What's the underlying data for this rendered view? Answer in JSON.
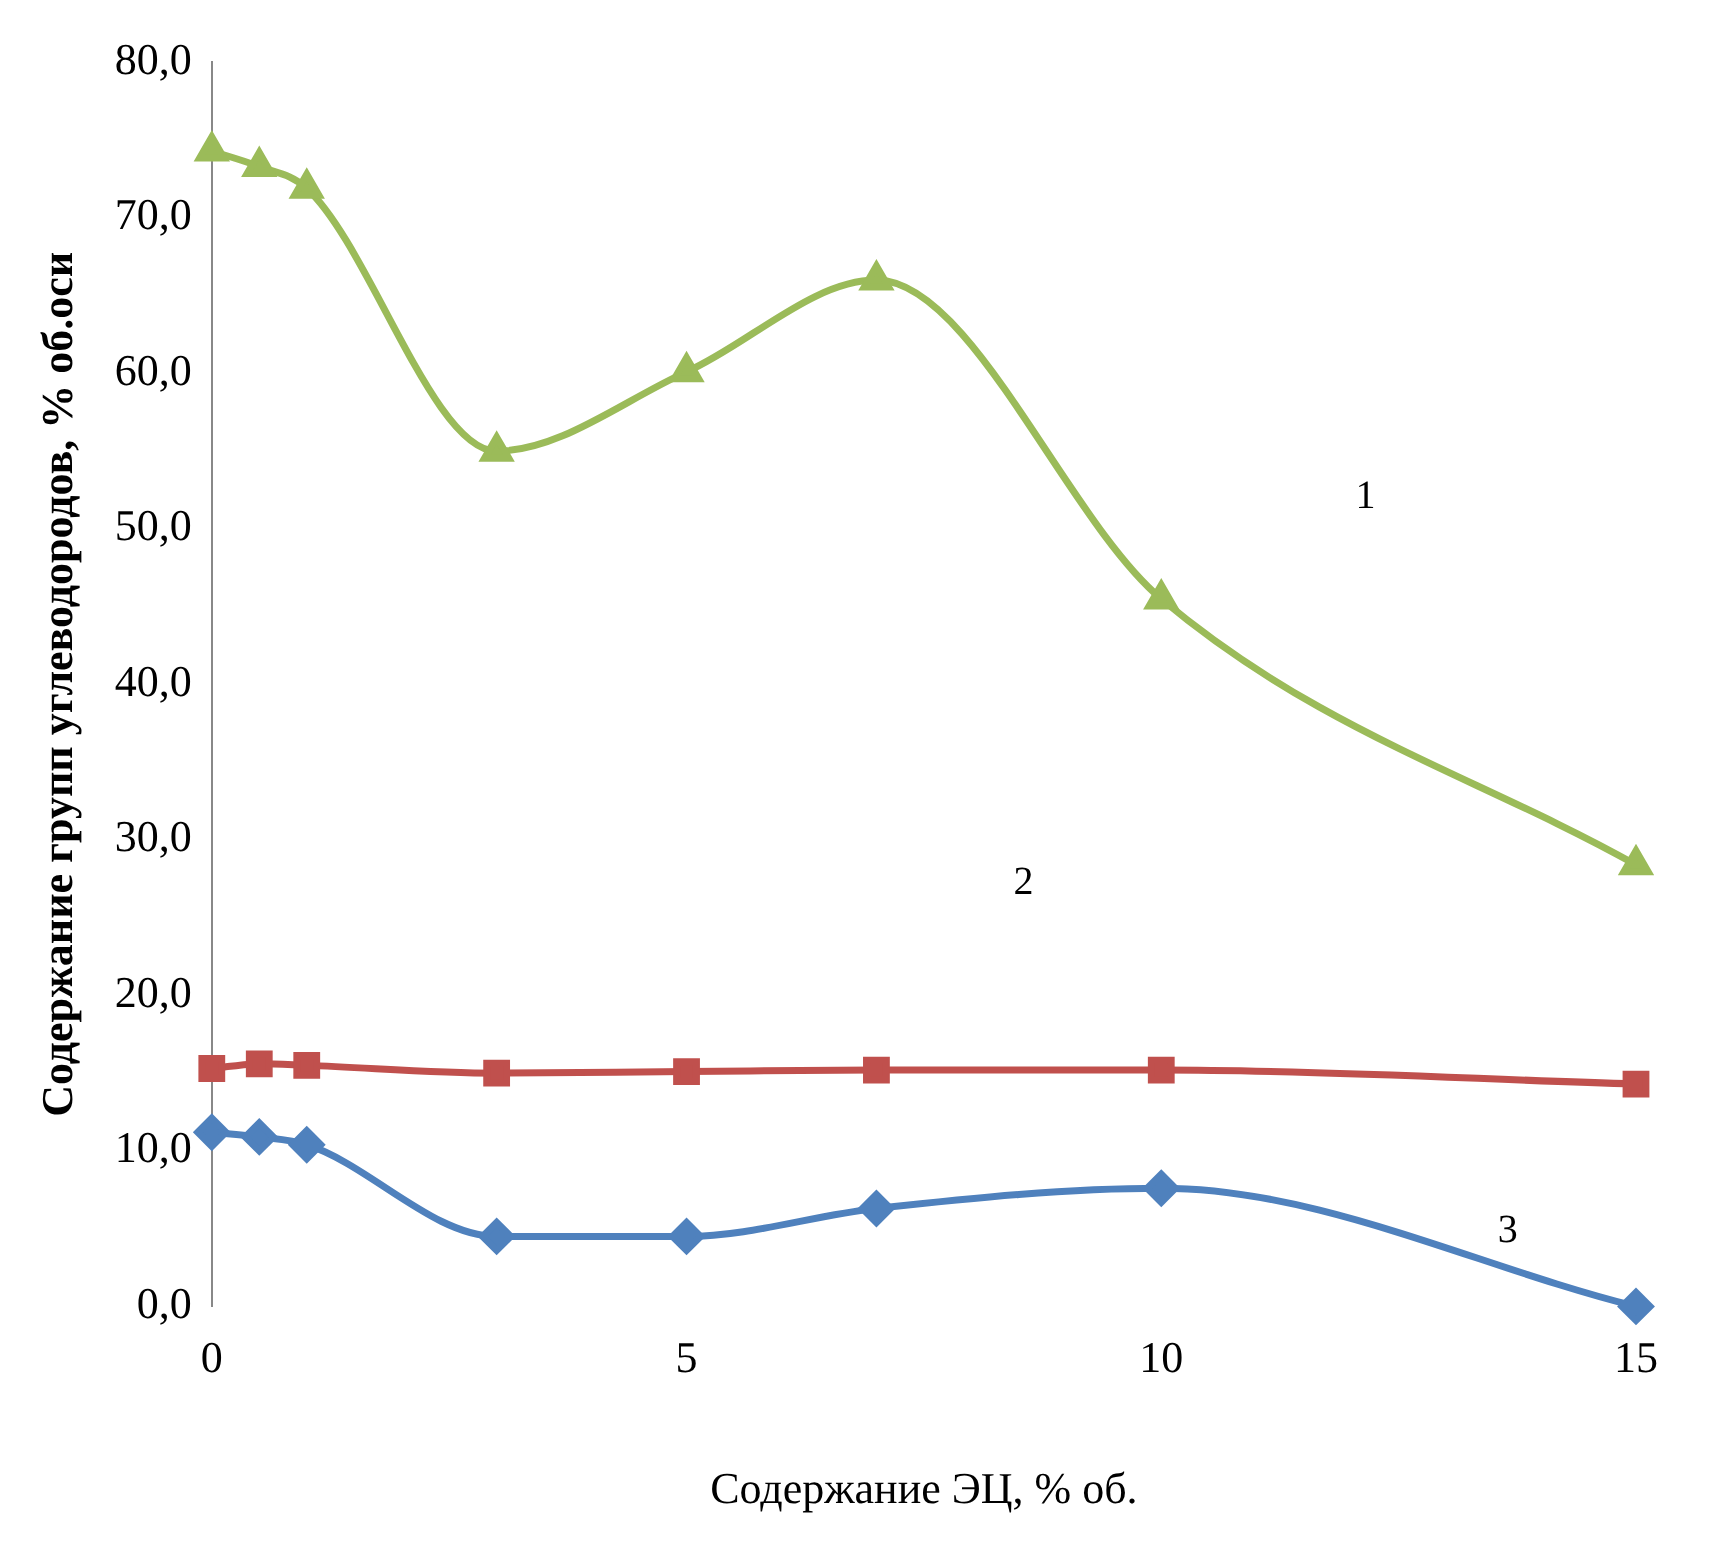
{
  "chart_data": {
    "type": "line",
    "xlabel": "Содержание ЭЦ, % об.",
    "ylabel": "Содержание групп углеводородов, % об.оси",
    "x": [
      0,
      0.5,
      1,
      3,
      5,
      7,
      10,
      15
    ],
    "series": [
      {
        "color": "#9bbb59",
        "marker": "triangle",
        "values": [
          74.3,
          73.3,
          71.9,
          55.0,
          60.1,
          66.0,
          45.5,
          28.4
        ]
      },
      {
        "color": "#c0504d",
        "marker": "square",
        "values": [
          15.3,
          15.6,
          15.5,
          15.0,
          15.1,
          15.2,
          15.2,
          14.3
        ]
      },
      {
        "color": "#4f81bd",
        "marker": "diamond",
        "values": [
          11.2,
          10.9,
          10.4,
          4.5,
          4.5,
          6.3,
          7.6,
          0.0
        ]
      }
    ],
    "xlim": [
      0,
      15
    ],
    "xticks": [
      0,
      5,
      10,
      15
    ],
    "ylim": [
      0,
      80
    ],
    "yticks": [
      {
        "value": 0,
        "label": "0,0"
      },
      {
        "value": 10,
        "label": "10,0"
      },
      {
        "value": 20,
        "label": "20,0"
      },
      {
        "value": 30,
        "label": "30,0"
      },
      {
        "value": 40,
        "label": "40,0"
      },
      {
        "value": 50,
        "label": "50,0"
      },
      {
        "value": 60,
        "label": "60,0"
      },
      {
        "value": 70,
        "label": "70,0"
      },
      {
        "value": 80,
        "label": "80,0"
      }
    ],
    "grid": false,
    "legend": false,
    "annotations": [
      "1",
      "2",
      "3"
    ]
  }
}
